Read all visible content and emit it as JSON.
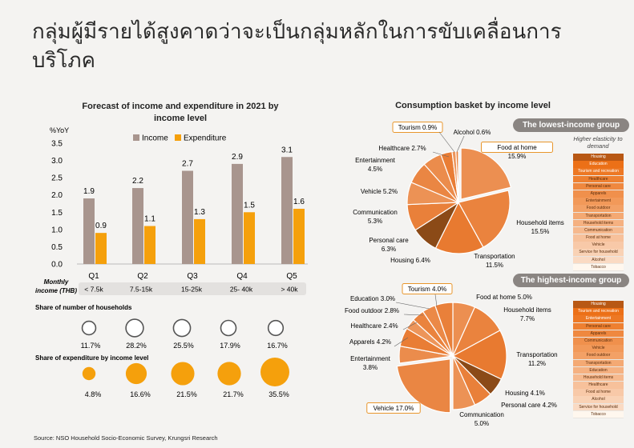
{
  "title": "กลุ่มผู้มีรายได้สูงคาดว่าจะเป็นกลุ่มหลักในการขับเคลื่อนการบริโภค",
  "source": "Source: NSO Household Socio-Economic Survey, Krungsri Research",
  "colors": {
    "income": "#a8958e",
    "expenditure": "#f5a00c",
    "pie_orange": "#ec8a3c",
    "pie_dark": "#8b4a17"
  },
  "chart_data": [
    {
      "type": "bar",
      "title": "Forecast of income and expenditure in 2021 by income level",
      "ylabel": "%YoY",
      "ylim": [
        0,
        3.5
      ],
      "yticks": [
        "3.5",
        "3.0",
        "2.5",
        "2.0",
        "1.5",
        "1.0",
        "0.5",
        "0.0"
      ],
      "categories": [
        "Q1",
        "Q2",
        "Q3",
        "Q4",
        "Q5"
      ],
      "series": [
        {
          "name": "Income",
          "values": [
            1.9,
            2.2,
            2.7,
            2.9,
            3.1
          ]
        },
        {
          "name": "Expenditure",
          "values": [
            0.9,
            1.1,
            1.3,
            1.5,
            1.6
          ]
        }
      ],
      "income_label": "Monthly income (THB)",
      "income_ranges": [
        "< 7.5k",
        "7.5-15k",
        "15-25k",
        "25- 40k",
        "> 40k"
      ],
      "households_title": "Share of number of households",
      "households": [
        "11.7%",
        "28.2%",
        "25.5%",
        "17.9%",
        "16.7%"
      ],
      "households_values": [
        11.7,
        28.2,
        25.5,
        17.9,
        16.7
      ],
      "expenditure_title": "Share of expenditure by income level",
      "expenditure": [
        "4.8%",
        "16.6%",
        "21.5%",
        "21.7%",
        "35.5%"
      ],
      "expenditure_values": [
        4.8,
        16.6,
        21.5,
        21.7,
        35.5
      ]
    },
    {
      "type": "pie",
      "title": "Consumption basket by income level",
      "group": "The lowest-income group",
      "slices": [
        {
          "label": "Food at home",
          "value": 15.9
        },
        {
          "label": "Household items",
          "value": 15.5
        },
        {
          "label": "Transportation",
          "value": 11.5
        },
        {
          "label": "Housing",
          "value": 6.4
        },
        {
          "label": "Personal care",
          "value": 6.3
        },
        {
          "label": "Communication",
          "value": 5.3
        },
        {
          "label": "Vehicle",
          "value": 5.2
        },
        {
          "label": "Entertainment",
          "value": 4.5
        },
        {
          "label": "Healthcare",
          "value": 2.7
        },
        {
          "label": "Tourism",
          "value": 0.9
        },
        {
          "label": "Alcohol",
          "value": 0.6
        }
      ],
      "labels": [
        "Food at home 15.9%",
        "Household items 15.5%",
        "Transportation 11.5%",
        "Housing 6.4%",
        "Personal care 6.3%",
        "Communication 5.3%",
        "Vehicle 5.2%",
        "Entertainment 4.5%",
        "Healthcare 2.7%",
        "Tourism 0.9%",
        "Alcohol 0.6%"
      ],
      "elasticity_label": "Higher elasticity to demand",
      "ranking": [
        "Housing",
        "Education",
        "Tourism and recreation",
        "Healthcare",
        "Personal care",
        "Apparels",
        "Entertainment",
        "Food outdoor",
        "Transportation",
        "Household items",
        "Communication",
        "Food at home",
        "Vehicle",
        "Service for household",
        "Alcohol",
        "Tobacco"
      ]
    },
    {
      "type": "pie",
      "group": "The highest-income group",
      "slices": [
        {
          "label": "Food at home",
          "value": 5.0
        },
        {
          "label": "Household items",
          "value": 7.7
        },
        {
          "label": "Transportation",
          "value": 11.2
        },
        {
          "label": "Housing",
          "value": 4.1
        },
        {
          "label": "Personal care",
          "value": 4.2
        },
        {
          "label": "Communication",
          "value": 5.0
        },
        {
          "label": "Vehicle",
          "value": 17.0
        },
        {
          "label": "Entertainment",
          "value": 3.8
        },
        {
          "label": "Apparels",
          "value": 4.2
        },
        {
          "label": "Healthcare",
          "value": 2.4
        },
        {
          "label": "Food outdoor",
          "value": 2.8
        },
        {
          "label": "Education",
          "value": 3.0
        },
        {
          "label": "Tourism",
          "value": 4.0
        }
      ],
      "labels": [
        "Food at home 5.0%",
        "Household items 7.7%",
        "Transportation 11.2%",
        "Housing 4.1%",
        "Personal care 4.2%",
        "Communication 5.0%",
        "Vehicle 17.0%",
        "Entertainment 3.8%",
        "Apparels 4.2%",
        "Healthcare 2.4%",
        "Food outdoor 2.8%",
        "Education 3.0%",
        "Tourism 4.0%"
      ],
      "ranking": [
        "Housing",
        "Tourism and recreation",
        "Entertainment",
        "Personal care",
        "Apparels",
        "Communication",
        "Vehicle",
        "Food outdoor",
        "Transportation",
        "Education",
        "Household items",
        "Healthcare",
        "Food at home",
        "Alcohol",
        "Service for household",
        "Tobacco"
      ]
    }
  ]
}
